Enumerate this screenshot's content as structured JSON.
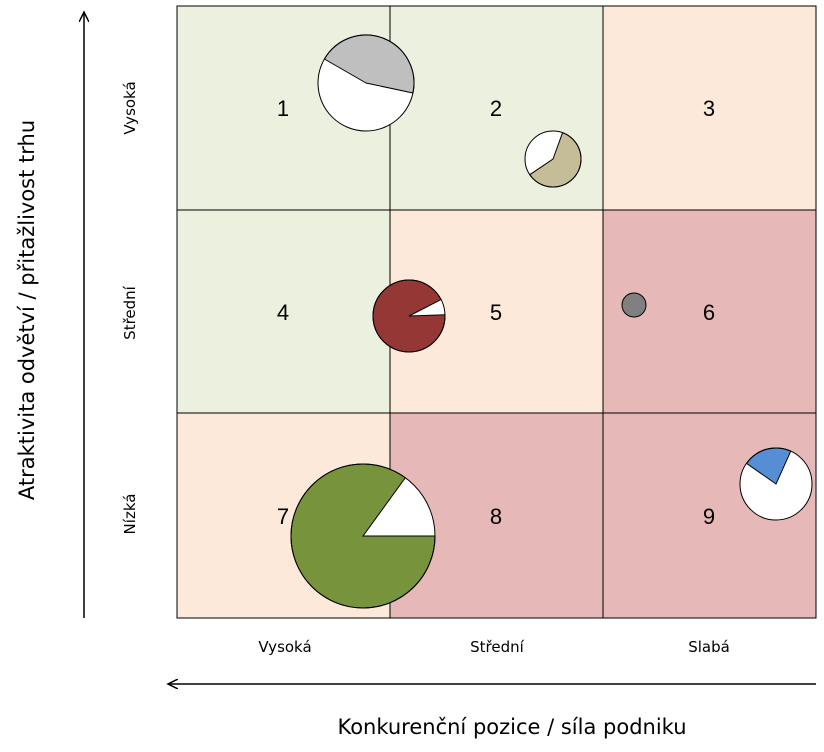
{
  "axes": {
    "y_label": "Atraktivita odvětví / přitažlivost trhu",
    "x_label": "Konkurenční pozice / síla podniku"
  },
  "rows": [
    "Vysoká",
    "Střední",
    "Nízká"
  ],
  "cols": [
    "Vysoká",
    "Střední",
    "Slabá"
  ],
  "cells": [
    {
      "num": "1",
      "color": "#ebf1de"
    },
    {
      "num": "2",
      "color": "#ebf1de"
    },
    {
      "num": "3",
      "color": "#fde9d9"
    },
    {
      "num": "4",
      "color": "#ebf1de"
    },
    {
      "num": "5",
      "color": "#fde9d9"
    },
    {
      "num": "6",
      "color": "#e6b9b8"
    },
    {
      "num": "7",
      "color": "#fde9d9"
    },
    {
      "num": "8",
      "color": "#e6b9b8"
    },
    {
      "num": "9",
      "color": "#e6b9b8"
    }
  ],
  "bubbles": [
    {
      "name": "bubble-gray",
      "share": 0.45,
      "color": "#bfbfbf"
    },
    {
      "name": "bubble-tan",
      "share": 0.6,
      "color": "#c4bd97"
    },
    {
      "name": "bubble-darkred",
      "share": 0.93,
      "color": "#953735"
    },
    {
      "name": "bubble-small-gray",
      "share": 1.0,
      "color": "#808080"
    },
    {
      "name": "bubble-green",
      "share": 0.85,
      "color": "#77933c"
    },
    {
      "name": "bubble-blue",
      "share": 0.22,
      "color": "#558ed5"
    }
  ]
}
